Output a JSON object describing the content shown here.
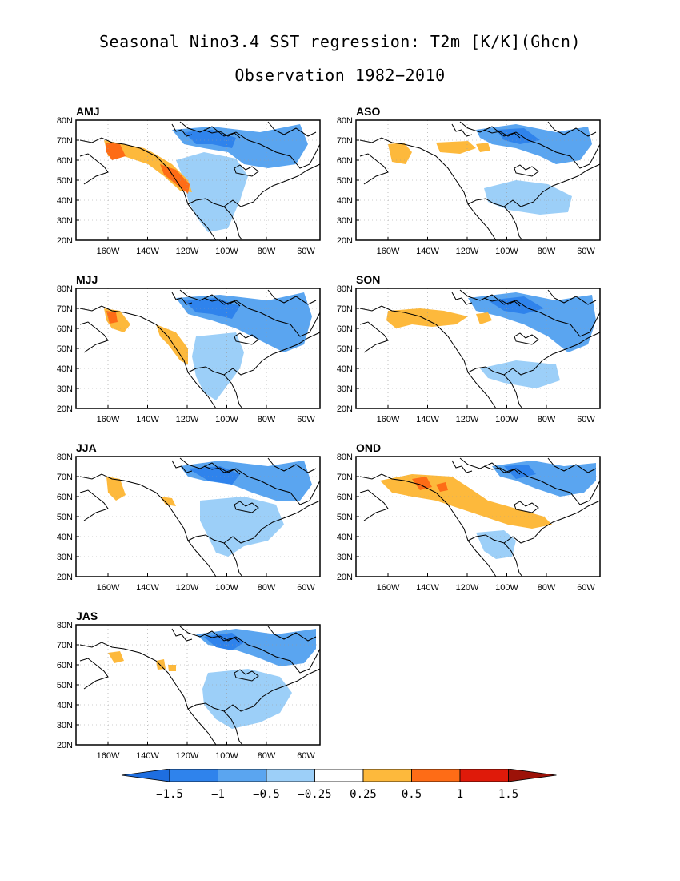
{
  "figure": {
    "title": "Seasonal Nino3.4 SST regression: T2m [K/K](Ghcn)",
    "subtitle": "Observation 1982−2010"
  },
  "axes": {
    "lat_labels": [
      "80N",
      "70N",
      "60N",
      "50N",
      "40N",
      "30N",
      "20N"
    ],
    "lon_labels": [
      "160W",
      "140W",
      "120W",
      "100W",
      "80W",
      "60W"
    ]
  },
  "panels": [
    {
      "id": "amj",
      "label": "AMJ"
    },
    {
      "id": "aso",
      "label": "ASO"
    },
    {
      "id": "mjj",
      "label": "MJJ"
    },
    {
      "id": "son",
      "label": "SON"
    },
    {
      "id": "jja",
      "label": "JJA"
    },
    {
      "id": "ond",
      "label": "OND"
    },
    {
      "id": "jas",
      "label": "JAS"
    }
  ],
  "colorbar": {
    "tick_labels": [
      "−1.5",
      "−1",
      "−0.5",
      "−0.25",
      "0.25",
      "0.5",
      "1",
      "1.5"
    ],
    "colors": [
      "#1e6ee0",
      "#2f83ec",
      "#5aa5f0",
      "#9ccff8",
      "#ffffff",
      "#fdb93c",
      "#fe6c16",
      "#df1a0a",
      "#9c1208"
    ]
  },
  "colors": {
    "strong_negative": "#2f83ec",
    "negative": "#5aa5f0",
    "weak_negative": "#9ccff8",
    "weak_positive": "#fdb93c",
    "positive": "#fe6c16"
  }
}
